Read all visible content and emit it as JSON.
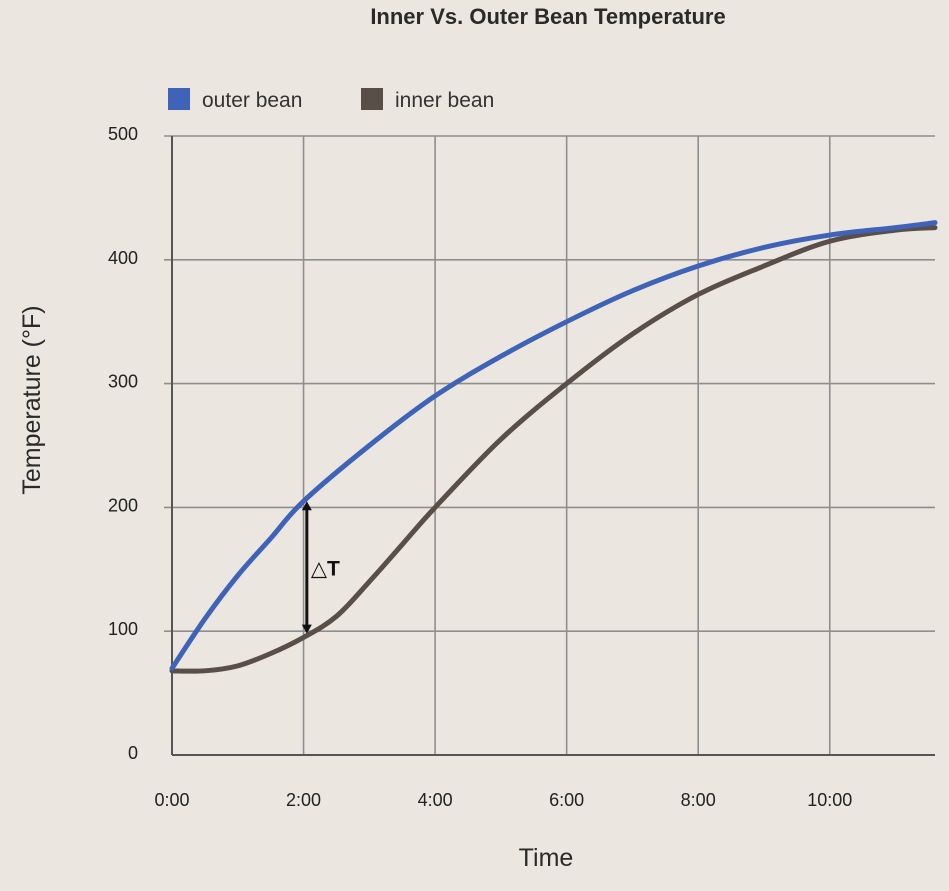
{
  "chart_data": {
    "type": "line",
    "title": "Inner Vs. Outer Bean Temperature",
    "xlabel": "Time",
    "ylabel": "Temperature (°F)",
    "x_tick_labels": [
      "0:00",
      "2:00",
      "4:00",
      "6:00",
      "8:00",
      "10:00"
    ],
    "x_tick_minutes": [
      0,
      2,
      4,
      6,
      8,
      10
    ],
    "y_ticks": [
      0,
      100,
      200,
      300,
      400,
      500
    ],
    "xlim": [
      0,
      11.6
    ],
    "ylim": [
      0,
      500
    ],
    "grid": true,
    "legend_position": "top-left",
    "series": [
      {
        "name": "outer bean",
        "color": "#3f63b8",
        "x": [
          0,
          0.5,
          1,
          1.5,
          2,
          3,
          4,
          5,
          6,
          7,
          8,
          9,
          10,
          11,
          11.6
        ],
        "y": [
          70,
          110,
          145,
          175,
          205,
          250,
          290,
          322,
          350,
          375,
          395,
          410,
          420,
          426,
          430
        ]
      },
      {
        "name": "inner bean",
        "color": "#5a4e48",
        "x": [
          0,
          0.5,
          1,
          1.5,
          2,
          2.5,
          3,
          3.5,
          4,
          5,
          6,
          7,
          8,
          9,
          10,
          11,
          11.6
        ],
        "y": [
          68,
          68,
          72,
          82,
          95,
          112,
          140,
          170,
          200,
          255,
          300,
          340,
          372,
          395,
          415,
          424,
          426
        ]
      }
    ],
    "annotations": [
      {
        "label": "△T",
        "x": 2.05,
        "y_from": 98,
        "y_to": 205
      }
    ]
  }
}
